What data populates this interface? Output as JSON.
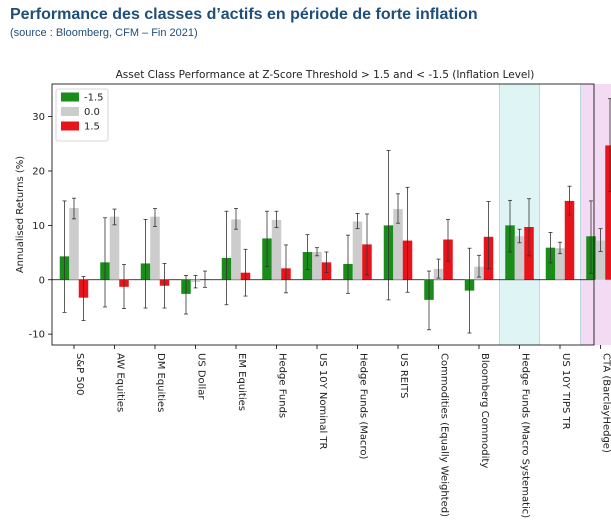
{
  "header": {
    "title": "Performance des classes d’actifs en période de forte inflation",
    "subtitle": "(source : Bloomberg, CFM – Fin 2021)"
  },
  "colors": {
    "neg": "#1a8c1a",
    "neutral": "#cccccc",
    "pos": "#e8141c",
    "highlight_blue": "#dff5f5",
    "highlight_pink": "#f3dcf3"
  },
  "chart_data": {
    "type": "bar",
    "title": "Asset Class Performance at Z-Score Threshold > 1.5 and < -1.5 (Inflation Level)",
    "xlabel": "",
    "ylabel": "Annualised Returns (%)",
    "ylim": [
      -12,
      36
    ],
    "yticks": [
      -10,
      0,
      10,
      20,
      30
    ],
    "grid": false,
    "legend_position": "top-left",
    "categories": [
      "S&P 500",
      "AW Equities",
      "DM Equities",
      "US Dollar",
      "EM Equities",
      "Hedge Funds",
      "US 10Y Nominal TR",
      "Hedge Funds (Macro)",
      "US REITS",
      "Commodities (Equally Weighted)",
      "Bloomberg Commodity",
      "Hedge Funds (Macro Systematic)",
      "US 10Y TIPS TR",
      "CTA (BarclayHedge)"
    ],
    "highlighted_categories": [
      "Hedge Funds (Macro Systematic)",
      "CTA (BarclayHedge)"
    ],
    "series": [
      {
        "name": "-1.5",
        "color": "#1a8c1a",
        "values": [
          4.3,
          3.2,
          3.0,
          -2.6,
          4.0,
          7.6,
          5.1,
          2.9,
          10.0,
          -3.7,
          -2.0,
          10.0,
          5.9,
          8.0
        ],
        "err_low": [
          -6.0,
          -5.0,
          -5.2,
          -6.3,
          -4.6,
          2.4,
          1.9,
          -2.5,
          -3.7,
          -9.2,
          -9.8,
          5.1,
          3.1,
          1.2
        ],
        "err_high": [
          14.5,
          11.4,
          11.1,
          0.8,
          12.6,
          12.6,
          8.3,
          8.2,
          23.8,
          1.6,
          5.8,
          14.6,
          8.7,
          14.5
        ]
      },
      {
        "name": "0.0",
        "color": "#cccccc",
        "values": [
          13.2,
          11.6,
          11.6,
          -0.4,
          11.1,
          11.0,
          5.1,
          10.7,
          13.0,
          2.0,
          2.4,
          8.0,
          5.8,
          7.2
        ],
        "err_low": [
          11.2,
          10.1,
          9.8,
          -1.5,
          9.3,
          9.6,
          4.4,
          9.4,
          10.4,
          0.3,
          0.5,
          6.8,
          4.8,
          5.2
        ],
        "err_high": [
          15.0,
          13.0,
          13.1,
          0.8,
          13.1,
          12.6,
          5.9,
          12.2,
          15.8,
          3.8,
          4.5,
          9.3,
          6.9,
          9.4
        ]
      },
      {
        "name": "1.5",
        "color": "#e8141c",
        "values": [
          -3.3,
          -1.3,
          -1.1,
          0.1,
          1.3,
          2.1,
          3.2,
          6.5,
          7.2,
          7.4,
          7.9,
          9.7,
          14.5,
          24.7
        ],
        "err_low": [
          -7.5,
          -5.3,
          -5.2,
          -1.4,
          -3.0,
          -2.4,
          1.3,
          0.9,
          -2.3,
          3.4,
          2.0,
          4.4,
          11.9,
          16.2
        ],
        "err_high": [
          0.6,
          2.8,
          3.0,
          1.6,
          5.6,
          6.4,
          5.1,
          12.1,
          17.0,
          11.1,
          14.4,
          14.9,
          17.2,
          33.3
        ]
      }
    ]
  }
}
